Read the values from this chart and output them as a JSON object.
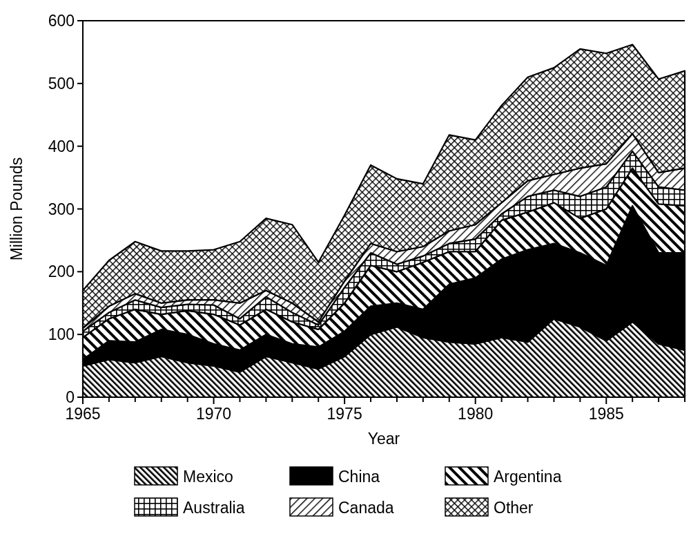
{
  "chart_data": {
    "type": "area",
    "stacked": true,
    "xlabel": "Year",
    "ylabel": "Million Pounds",
    "x": [
      1965,
      1966,
      1967,
      1968,
      1969,
      1970,
      1971,
      1972,
      1973,
      1974,
      1975,
      1976,
      1977,
      1978,
      1979,
      1980,
      1981,
      1982,
      1983,
      1984,
      1985,
      1986,
      1987,
      1988
    ],
    "series": [
      {
        "name": "Mexico",
        "color": "#000000",
        "values": [
          50,
          60,
          55,
          65,
          55,
          50,
          40,
          65,
          55,
          45,
          65,
          100,
          112,
          95,
          88,
          85,
          95,
          88,
          125,
          112,
          90,
          120,
          85,
          75
        ]
      },
      {
        "name": "China",
        "color": "#000000",
        "values": [
          10,
          30,
          33,
          43,
          45,
          35,
          35,
          35,
          30,
          35,
          40,
          45,
          38,
          45,
          92,
          105,
          125,
          147,
          120,
          118,
          120,
          185,
          145,
          155
        ]
      },
      {
        "name": "Argentina",
        "color": "#000000",
        "values": [
          35,
          35,
          52,
          24,
          38,
          47,
          40,
          40,
          35,
          28,
          45,
          65,
          50,
          75,
          52,
          42,
          62,
          60,
          65,
          55,
          90,
          60,
          78,
          75
        ]
      },
      {
        "name": "Australia",
        "color": "#000000",
        "values": [
          10,
          10,
          15,
          11,
          10,
          15,
          10,
          20,
          15,
          7,
          25,
          20,
          12,
          10,
          13,
          20,
          10,
          25,
          20,
          35,
          35,
          27,
          27,
          25
        ]
      },
      {
        "name": "Canada",
        "color": "#000000",
        "values": [
          5,
          10,
          10,
          7,
          7,
          8,
          25,
          10,
          15,
          5,
          10,
          15,
          20,
          15,
          20,
          23,
          18,
          25,
          25,
          45,
          37,
          28,
          23,
          35
        ]
      },
      {
        "name": "Other",
        "color": "#000000",
        "values": [
          60,
          73,
          83,
          83,
          78,
          80,
          98,
          115,
          125,
          95,
          105,
          125,
          116,
          100,
          153,
          135,
          155,
          165,
          170,
          190,
          176,
          142,
          149,
          155
        ]
      }
    ],
    "xlim": [
      1965,
      1988
    ],
    "xticks": [
      1965,
      {
        "value": 1966,
        "label": null
      },
      {
        "value": 1967,
        "label": null
      },
      {
        "value": 1968,
        "label": null
      },
      {
        "value": 1969,
        "label": null
      },
      1970,
      {
        "value": 1971,
        "label": null
      },
      {
        "value": 1972,
        "label": null
      },
      {
        "value": 1973,
        "label": null
      },
      {
        "value": 1974,
        "label": null
      },
      1975,
      {
        "value": 1976,
        "label": null
      },
      {
        "value": 1977,
        "label": null
      },
      {
        "value": 1978,
        "label": null
      },
      {
        "value": 1979,
        "label": null
      },
      1980,
      {
        "value": 1981,
        "label": null
      },
      {
        "value": 1982,
        "label": null
      },
      {
        "value": 1983,
        "label": null
      },
      {
        "value": 1984,
        "label": null
      },
      1985,
      {
        "value": 1986,
        "label": null
      },
      {
        "value": 1987,
        "label": null
      },
      {
        "value": 1988,
        "label": null
      }
    ],
    "ylim": [
      0,
      600
    ],
    "yticks": [
      0,
      100,
      200,
      300,
      400,
      500,
      600
    ],
    "legend": "bottom",
    "grid": false
  }
}
